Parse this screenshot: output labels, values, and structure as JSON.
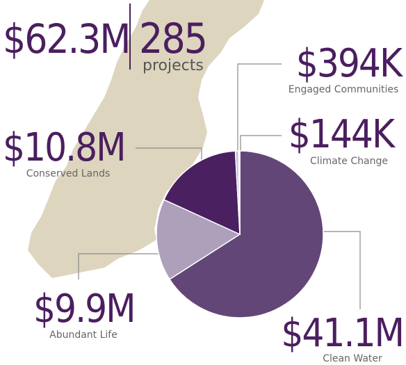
{
  "chart_data": {
    "type": "pie",
    "total_label": "$62.3M",
    "project_count": 285,
    "project_label": "projects",
    "categories": [
      "Clean Water",
      "Abundant Life",
      "Conserved Lands",
      "Engaged Communities",
      "Climate Change"
    ],
    "values": [
      41100000,
      9900000,
      10800000,
      394000,
      144000
    ],
    "value_labels": [
      "$41.1M",
      "$9.9M",
      "$10.8M",
      "$394K",
      "$144K"
    ],
    "colors": [
      "#634678",
      "#ae9fbb",
      "#4a2060",
      "#cbbfd8",
      "#d8cfe2"
    ]
  }
}
